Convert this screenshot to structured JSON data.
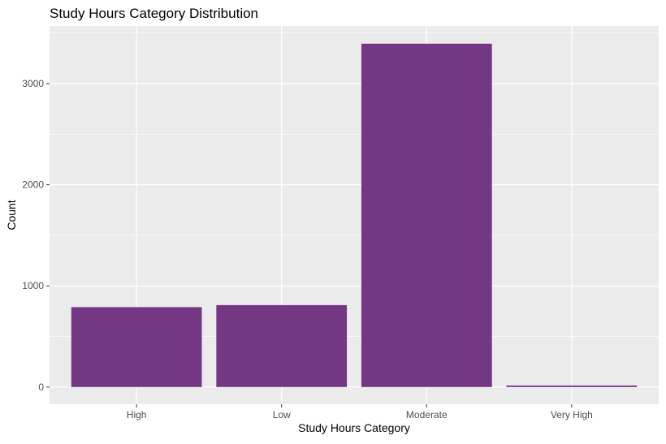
{
  "chart_data": {
    "type": "bar",
    "title": "Study Hours Category Distribution",
    "xlabel": "Study Hours Category",
    "ylabel": "Count",
    "categories": [
      "High",
      "Low",
      "Moderate",
      "Very High"
    ],
    "values": [
      790,
      810,
      3395,
      15
    ],
    "ylim": [
      -170,
      3570
    ],
    "yticks": [
      0,
      1000,
      2000,
      3000
    ],
    "grid": true,
    "legend": "none",
    "colors": {
      "bar": "#733784",
      "panel": "#ebebeb",
      "grid_major": "#ffffff",
      "tick_text": "#4d4d4d"
    }
  }
}
